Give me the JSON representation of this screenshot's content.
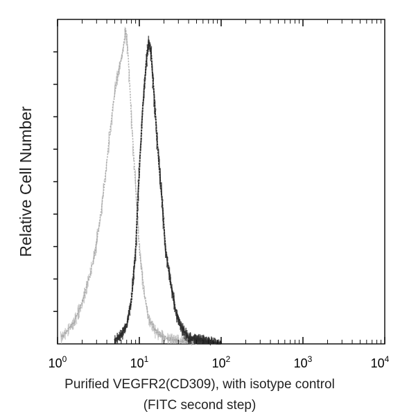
{
  "chart_data": {
    "type": "area",
    "xlabel_line1": "Purified VEGFR2(CD309), with isotype control",
    "xlabel_line2": "(FITC second step)",
    "ylabel": "Relative Cell Number",
    "x_scale": "log",
    "xlim": [
      1,
      10000
    ],
    "ylim": [
      0,
      1
    ],
    "x_ticks": [
      {
        "base": "10",
        "exp": "0",
        "value": 1
      },
      {
        "base": "10",
        "exp": "1",
        "value": 10
      },
      {
        "base": "10",
        "exp": "2",
        "value": 100
      },
      {
        "base": "10",
        "exp": "3",
        "value": 1000
      },
      {
        "base": "10",
        "exp": "4",
        "value": 10000
      }
    ],
    "grid": false,
    "series": [
      {
        "color": "#a8a8a8",
        "points": [
          [
            1.1,
            0.02
          ],
          [
            1.3,
            0.04
          ],
          [
            1.6,
            0.07
          ],
          [
            2.0,
            0.13
          ],
          [
            2.3,
            0.19
          ],
          [
            2.6,
            0.24
          ],
          [
            3.0,
            0.32
          ],
          [
            3.5,
            0.44
          ],
          [
            4.0,
            0.58
          ],
          [
            4.5,
            0.7
          ],
          [
            5.0,
            0.8
          ],
          [
            5.6,
            0.87
          ],
          [
            6.3,
            0.93
          ],
          [
            6.8,
            1.0
          ],
          [
            7.3,
            0.92
          ],
          [
            8.0,
            0.72
          ],
          [
            9.0,
            0.5
          ],
          [
            10.0,
            0.3
          ],
          [
            11.5,
            0.16
          ],
          [
            13.0,
            0.08
          ],
          [
            16.0,
            0.04
          ],
          [
            20.0,
            0.02
          ],
          [
            30.0,
            0.01
          ],
          [
            50.0,
            0.0
          ]
        ]
      },
      {
        "color": "#2a2a2a",
        "points": [
          [
            5.0,
            0.01
          ],
          [
            6.0,
            0.03
          ],
          [
            7.0,
            0.06
          ],
          [
            8.0,
            0.14
          ],
          [
            9.0,
            0.3
          ],
          [
            10.0,
            0.55
          ],
          [
            11.0,
            0.75
          ],
          [
            12.0,
            0.88
          ],
          [
            13.0,
            0.96
          ],
          [
            14.0,
            0.92
          ],
          [
            15.5,
            0.75
          ],
          [
            17.0,
            0.6
          ],
          [
            19.0,
            0.45
          ],
          [
            21.0,
            0.3
          ],
          [
            24.0,
            0.2
          ],
          [
            28.0,
            0.1
          ],
          [
            33.0,
            0.05
          ],
          [
            40.0,
            0.02
          ],
          [
            60.0,
            0.01
          ],
          [
            100.0,
            0.0
          ]
        ]
      }
    ]
  }
}
